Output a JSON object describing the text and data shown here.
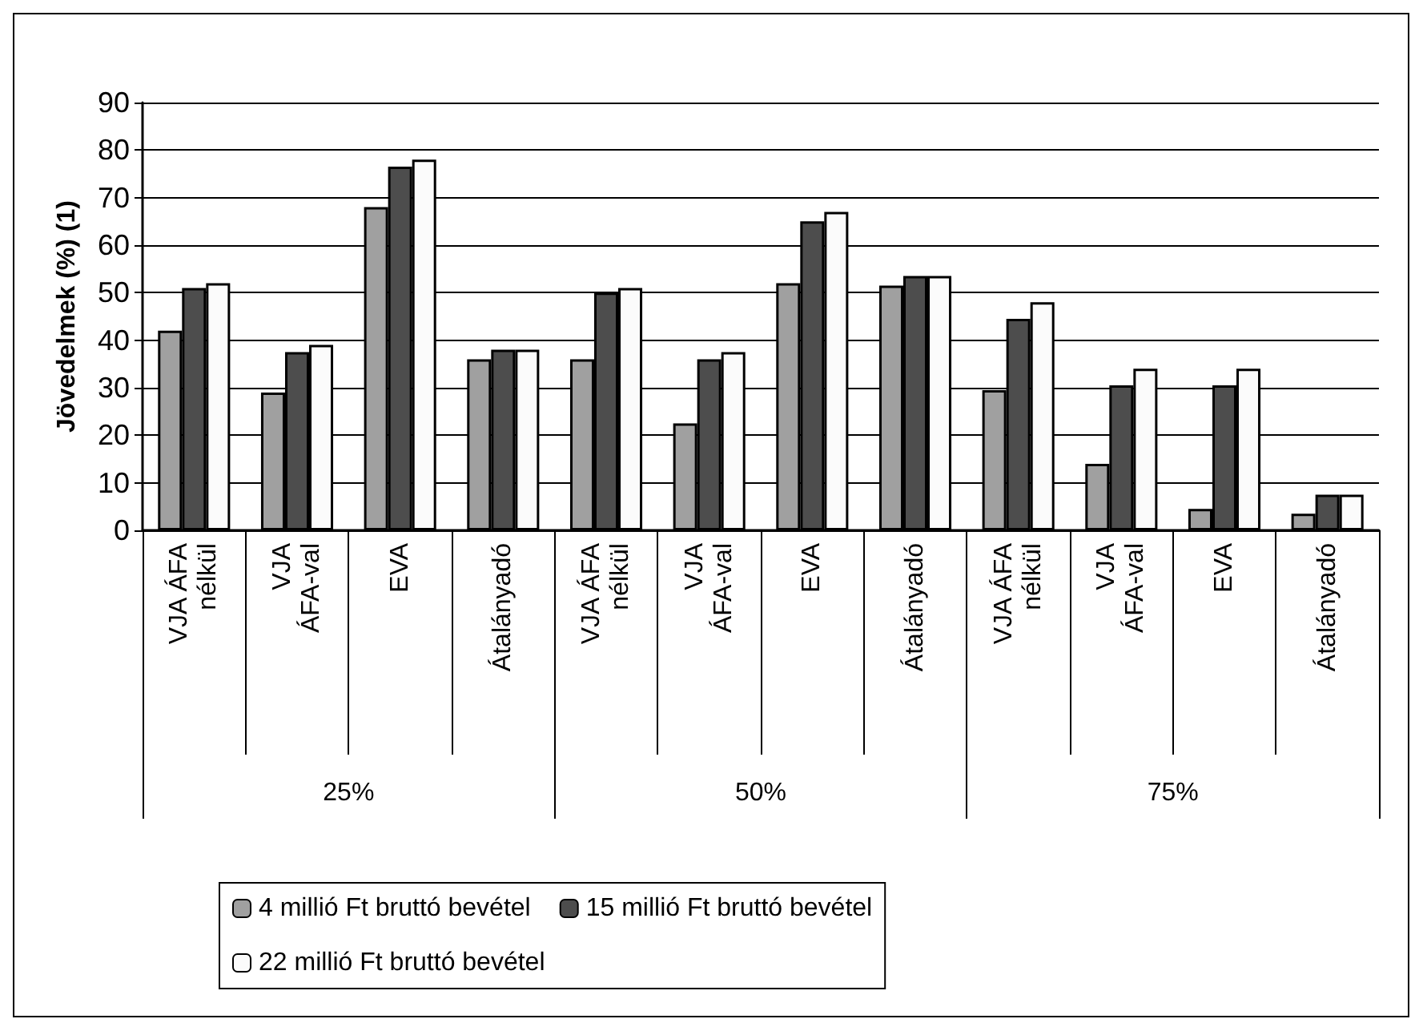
{
  "chart_data": {
    "type": "bar",
    "ylabel": "Jövedelmek (%) (1)",
    "categories": [
      "VJA ÁFA nélkül",
      "VJA ÁFA-val",
      "EVA",
      "Átalányadó",
      "VJA ÁFA nélkül",
      "VJA ÁFA-val",
      "EVA",
      "Átalányadó",
      "VJA ÁFA nélkül",
      "VJA ÁFA-val",
      "EVA",
      "Átalányadó"
    ],
    "annotations": [
      "25%",
      "50%",
      "75%"
    ],
    "series": [
      {
        "name": "4 millió Ft bruttó bevétel",
        "color": "#a0a0a0",
        "values": [
          42,
          29,
          68,
          36,
          36,
          22.5,
          52,
          51.5,
          29.5,
          14,
          4.5,
          3.5
        ]
      },
      {
        "name": "15 millió Ft bruttó bevétel",
        "color": "#4d4d4d",
        "values": [
          51,
          37.5,
          76.5,
          38,
          50,
          36,
          65,
          53.5,
          44.5,
          30.5,
          30.5,
          7.5
        ]
      },
      {
        "name": "22 millió Ft bruttó bevétel",
        "color": "#fbfbfb",
        "values": [
          52,
          39,
          78,
          38,
          51,
          37.5,
          67,
          53.5,
          48,
          34,
          34,
          7.5
        ]
      }
    ],
    "ylim": [
      0,
      90
    ],
    "yticks": [
      0,
      10,
      20,
      30,
      40,
      50,
      60,
      70,
      80,
      90
    ],
    "grid": "y",
    "legend": "bottom"
  }
}
